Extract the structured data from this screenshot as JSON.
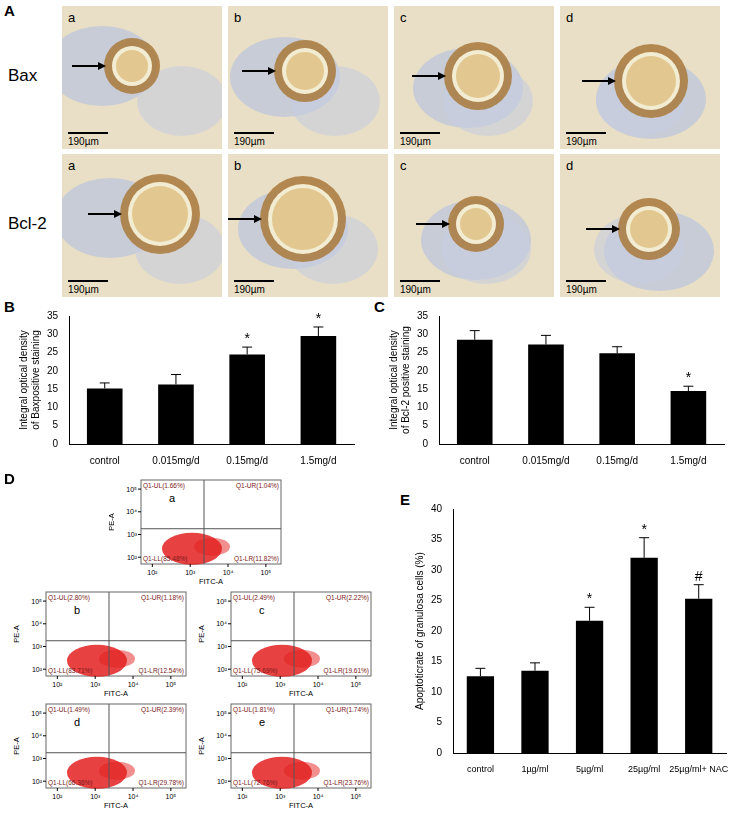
{
  "panel_A": {
    "label": "A",
    "scale_bar": "190µm",
    "rows": [
      {
        "name": "Bax",
        "images": [
          "a",
          "b",
          "c",
          "d"
        ]
      },
      {
        "name": "Bcl-2",
        "images": [
          "a",
          "b",
          "c",
          "d"
        ]
      }
    ]
  },
  "chart_data": [
    {
      "panel": "B",
      "type": "bar",
      "y_label": [
        "Integral optical density",
        "of Baxpositive staining"
      ],
      "categories": [
        "control",
        "0.015mg/d",
        "0.15mg/d",
        "1.5mg/d"
      ],
      "values": [
        15.2,
        16.3,
        24.5,
        29.5
      ],
      "errors": [
        1.5,
        2.7,
        2.0,
        2.5
      ],
      "significance": [
        null,
        null,
        "*",
        "*"
      ],
      "color": "#000000",
      "ylim": [
        0,
        35
      ],
      "yticks": [
        0,
        5,
        10,
        15,
        20,
        25,
        30,
        35
      ],
      "grid": false
    },
    {
      "panel": "C",
      "type": "bar",
      "y_label": [
        "Integral optical density",
        "of Bcl-2 positive staining"
      ],
      "categories": [
        "control",
        "0.015mg/d",
        "0.15mg/d",
        "1.5mg/d"
      ],
      "values": [
        28.5,
        27.2,
        24.8,
        14.5
      ],
      "errors": [
        2.5,
        2.5,
        1.8,
        1.3
      ],
      "significance": [
        null,
        null,
        null,
        "*"
      ],
      "color": "#000000",
      "ylim": [
        0,
        35
      ],
      "yticks": [
        0,
        5,
        10,
        15,
        20,
        25,
        30,
        35
      ],
      "grid": false
    },
    {
      "panel": "E",
      "type": "bar",
      "y_label": [
        "Apoptoticrate of granulosa cells (%)"
      ],
      "categories": [
        "control",
        "1µg/ml",
        "5µg/ml",
        "25µg/ml",
        "25µg/ml+ NAC"
      ],
      "values": [
        12.6,
        13.5,
        21.7,
        32.0,
        25.3
      ],
      "errors": [
        1.3,
        1.3,
        2.2,
        3.3,
        2.3
      ],
      "significance": [
        null,
        null,
        "*",
        "*",
        "#"
      ],
      "color": "#000000",
      "ylim": [
        0,
        40
      ],
      "yticks": [
        0,
        5,
        10,
        15,
        20,
        25,
        30,
        35,
        40
      ],
      "grid": false
    }
  ],
  "panel_D": {
    "label": "D",
    "x_label": "FITC-A",
    "y_label": "PE-A",
    "ticks": [
      {
        "value": 100,
        "label": "10²"
      },
      {
        "value": 1000,
        "label": "10³"
      },
      {
        "value": 10000,
        "label": "10⁴"
      },
      {
        "value": 100000,
        "label": "10⁵"
      }
    ],
    "plots": [
      {
        "label": "a",
        "UL": "Q1-UL(1.66%)",
        "UR": "Q1-UR(1.04%)",
        "LL": "Q1-LL(85.48%)",
        "LR": "Q1-LR(11.82%)"
      },
      {
        "label": "b",
        "UL": "Q1-UL(2.80%)",
        "UR": "Q1-UR(1.18%)",
        "LL": "Q1-LL(83.71%)",
        "LR": "Q1-LR(12.54%)"
      },
      {
        "label": "c",
        "UL": "Q1-UL(2.49%)",
        "UR": "Q1-UR(2.22%)",
        "LL": "Q1-LL(75.69%)",
        "LR": "Q1-LR(19.61%)"
      },
      {
        "label": "d",
        "UL": "Q1-UL(1.49%)",
        "UR": "Q1-UR(2.39%)",
        "LL": "Q1-LL(66.36%)",
        "LR": "Q1-LR(29.78%)"
      },
      {
        "label": "e",
        "UL": "Q1-UL(1.81%)",
        "UR": "Q1-UR(1.74%)",
        "LL": "Q1-LL(72.76%)",
        "LR": "Q1-LR(23.76%)"
      }
    ]
  }
}
